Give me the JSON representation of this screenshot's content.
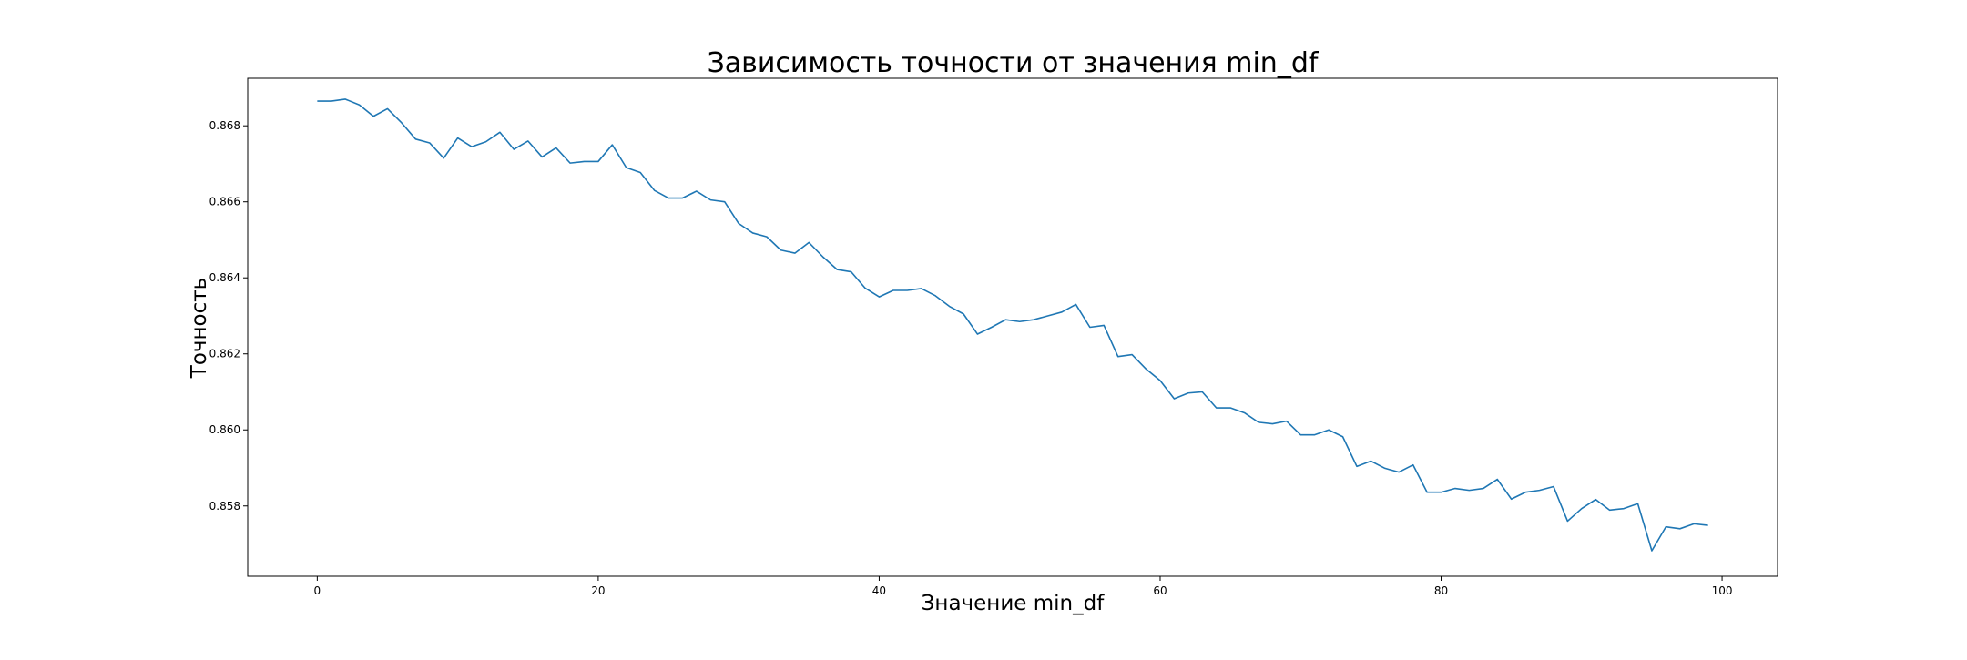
{
  "colors": {
    "line": "#1f77b4",
    "axes": "#000000",
    "background": "#ffffff"
  },
  "chart_data": {
    "type": "line",
    "title": "Зависимость точности от значения min_df",
    "xlabel": "Значение min_df",
    "ylabel": "Точность",
    "xlim": [
      -4.95,
      103.95
    ],
    "ylim": [
      0.85615,
      0.86925
    ],
    "xticks": [
      0,
      20,
      40,
      60,
      80,
      100
    ],
    "yticks": [
      0.858,
      0.86,
      0.862,
      0.864,
      0.866,
      0.868
    ],
    "xtick_labels": [
      "0",
      "20",
      "40",
      "60",
      "80",
      "100"
    ],
    "ytick_labels": [
      "0.858",
      "0.860",
      "0.862",
      "0.864",
      "0.866",
      "0.868"
    ],
    "grid": false,
    "legend": false,
    "series": [
      {
        "x": [
          0,
          1,
          2,
          3,
          4,
          5,
          6,
          7,
          8,
          9,
          10,
          11,
          12,
          13,
          14,
          15,
          16,
          17,
          18,
          19,
          20,
          21,
          22,
          23,
          24,
          25,
          26,
          27,
          28,
          29,
          30,
          31,
          32,
          33,
          34,
          35,
          36,
          37,
          38,
          39,
          40,
          41,
          42,
          43,
          44,
          45,
          46,
          47,
          48,
          49,
          50,
          51,
          52,
          53,
          54,
          55,
          56,
          57,
          58,
          59,
          60,
          61,
          62,
          63,
          64,
          65,
          66,
          67,
          68,
          69,
          70,
          71,
          72,
          73,
          74,
          75,
          76,
          77,
          78,
          79,
          80,
          81,
          82,
          83,
          84,
          85,
          86,
          87,
          88,
          89,
          90,
          91,
          92,
          93,
          94,
          95,
          96,
          97,
          98,
          99
        ],
        "values": [
          0.86865,
          0.86865,
          0.8687,
          0.86855,
          0.86825,
          0.86845,
          0.86808,
          0.86765,
          0.86755,
          0.86715,
          0.86768,
          0.86745,
          0.86758,
          0.86783,
          0.86738,
          0.8676,
          0.86718,
          0.86742,
          0.86702,
          0.86706,
          0.86706,
          0.8675,
          0.8669,
          0.86677,
          0.8663,
          0.8661,
          0.8661,
          0.86628,
          0.86605,
          0.866,
          0.86543,
          0.86518,
          0.86508,
          0.86473,
          0.86465,
          0.86493,
          0.86455,
          0.86422,
          0.86416,
          0.86373,
          0.8635,
          0.86367,
          0.86367,
          0.86372,
          0.86353,
          0.86325,
          0.86305,
          0.86252,
          0.8627,
          0.8629,
          0.86285,
          0.8629,
          0.863,
          0.8631,
          0.8633,
          0.8627,
          0.86275,
          0.86193,
          0.86198,
          0.8616,
          0.8613,
          0.86082,
          0.86097,
          0.861,
          0.86058,
          0.86058,
          0.86045,
          0.8602,
          0.86016,
          0.86023,
          0.85987,
          0.85987,
          0.86,
          0.85982,
          0.85904,
          0.85918,
          0.85899,
          0.85889,
          0.85908,
          0.85836,
          0.85836,
          0.85846,
          0.85841,
          0.85846,
          0.8587,
          0.85818,
          0.85836,
          0.85841,
          0.85851,
          0.8576,
          0.85793,
          0.85817,
          0.85789,
          0.85793,
          0.85806,
          0.85682,
          0.85745,
          0.8574,
          0.85753,
          0.85749
        ]
      }
    ]
  }
}
